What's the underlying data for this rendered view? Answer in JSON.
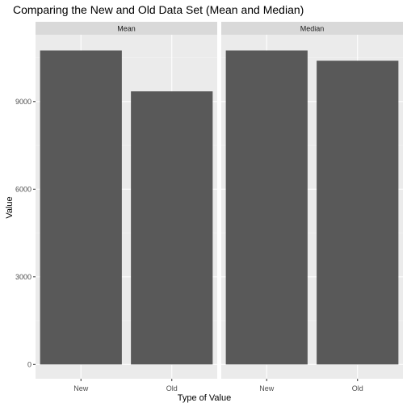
{
  "chart_data": {
    "type": "bar",
    "title": "Comparing the New and Old Data Set (Mean and Median)",
    "xlabel": "Type of Value",
    "ylabel": "Value",
    "ylim": [
      0,
      11250
    ],
    "yticks": [
      0,
      3000,
      6000,
      9000
    ],
    "ytick_labels": [
      "0",
      "3000",
      "6000",
      "9000"
    ],
    "grid": true,
    "facets": [
      {
        "label": "Mean",
        "categories": [
          "New",
          "Old"
        ],
        "values": [
          10750,
          9350
        ]
      },
      {
        "label": "Median",
        "categories": [
          "New",
          "Old"
        ],
        "values": [
          10750,
          10400
        ]
      }
    ]
  },
  "colors": {
    "panel_bg": "#ebebeb",
    "strip_bg": "#d9d9d9",
    "bar_fill": "#595959",
    "grid_major": "#ffffff",
    "tick_mark": "#333333"
  }
}
